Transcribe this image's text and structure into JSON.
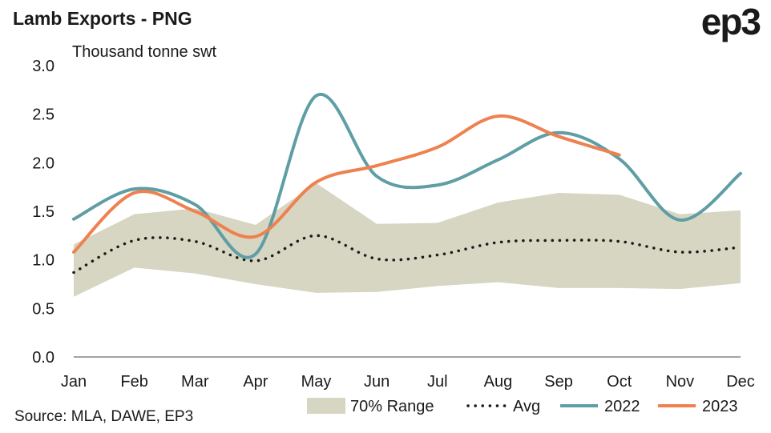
{
  "header": {
    "title": "Lamb Exports - PNG",
    "logo": "ep3"
  },
  "footer": {
    "source": "Source: MLA, DAWE, EP3"
  },
  "chart_data": {
    "type": "line",
    "title": "Lamb Exports - PNG",
    "ylabel": "Thousand tonne swt",
    "xlabel": "",
    "categories": [
      "Jan",
      "Feb",
      "Mar",
      "Apr",
      "May",
      "Jun",
      "Jul",
      "Aug",
      "Sep",
      "Oct",
      "Nov",
      "Dec"
    ],
    "ylim": [
      0,
      3
    ],
    "yticks": [
      "0.0",
      "0.5",
      "1.0",
      "1.5",
      "2.0",
      "2.5",
      "3.0"
    ],
    "grid": false,
    "legend": "bottom",
    "range": {
      "name": "70% Range",
      "color": "#d6d6c2",
      "low": [
        0.62,
        0.92,
        0.86,
        0.75,
        0.66,
        0.67,
        0.73,
        0.77,
        0.71,
        0.71,
        0.7,
        0.76
      ],
      "high": [
        1.16,
        1.47,
        1.53,
        1.36,
        1.79,
        1.37,
        1.38,
        1.59,
        1.69,
        1.67,
        1.47,
        1.51
      ]
    },
    "series": [
      {
        "name": "Avg",
        "style": "dotted",
        "color": "#1a1a1a",
        "values": [
          0.87,
          1.2,
          1.19,
          0.99,
          1.25,
          1.01,
          1.05,
          1.18,
          1.2,
          1.19,
          1.08,
          1.13
        ]
      },
      {
        "name": "2022",
        "style": "solid",
        "color": "#5f9ea4",
        "values": [
          1.42,
          1.73,
          1.57,
          1.06,
          2.69,
          1.86,
          1.77,
          2.03,
          2.31,
          2.04,
          1.41,
          1.89
        ]
      },
      {
        "name": "2023",
        "style": "solid",
        "color": "#ef8150",
        "values": [
          1.08,
          1.69,
          1.5,
          1.24,
          1.8,
          1.97,
          2.16,
          2.48,
          2.27,
          2.08,
          null,
          null
        ]
      }
    ]
  }
}
